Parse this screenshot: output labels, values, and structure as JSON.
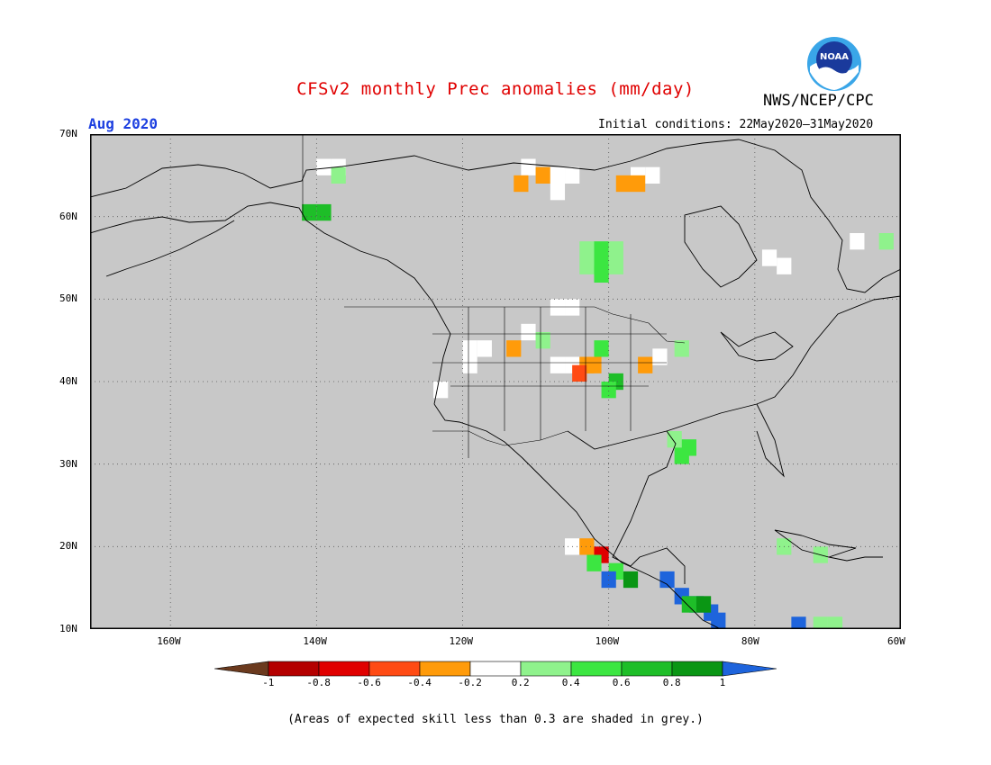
{
  "title": "CFSv2 monthly Prec anomalies (mm/day)",
  "agency": "NWS/NCEP/CPC",
  "logo_text": "NOAA",
  "valid_month": "Aug 2020",
  "initial_conditions": "Initial conditions: 22May2020–31May2020",
  "footnote": "(Areas of expected skill less than 0.3 are shaded in grey.)",
  "map": {
    "lat_labels": [
      "70N",
      "60N",
      "50N",
      "40N",
      "30N",
      "20N",
      "10N"
    ],
    "lon_labels": [
      "160W",
      "140W",
      "120W",
      "100W",
      "80W",
      "60W"
    ],
    "lat_range": [
      10,
      70
    ],
    "lon_range": [
      -171,
      -60
    ],
    "grid": "dotted",
    "background_color": "#c8c8c8"
  },
  "colorbar": {
    "labels": [
      "-1",
      "-0.8",
      "-0.6",
      "-0.4",
      "-0.2",
      "0.2",
      "0.4",
      "0.6",
      "0.8",
      "1"
    ],
    "colors": [
      "#6b3a1e",
      "#b40000",
      "#e00000",
      "#ff4b14",
      "#ff9b0a",
      "#ffffff",
      "#8ff28c",
      "#3ce641",
      "#1ebe28",
      "#0a9614",
      "#1e64dc"
    ]
  },
  "chart_data": {
    "type": "heatmap",
    "title": "CFSv2 monthly Prec anomalies (mm/day)",
    "units": "mm/day",
    "grid_step_deg": 2,
    "cells": [
      {
        "lon": -139,
        "lat": 66,
        "value": 0.1
      },
      {
        "lon": -137,
        "lat": 66,
        "value": 0.1
      },
      {
        "lon": -137,
        "lat": 65,
        "value": 0.3
      },
      {
        "lon": -139,
        "lat": 60.5,
        "value": 0.7
      },
      {
        "lon": -141,
        "lat": 60.5,
        "value": 0.7
      },
      {
        "lon": -111,
        "lat": 66,
        "value": 0.1
      },
      {
        "lon": -112,
        "lat": 64,
        "value": -0.3
      },
      {
        "lon": -109,
        "lat": 65,
        "value": -0.3
      },
      {
        "lon": -107,
        "lat": 65,
        "value": 0.1
      },
      {
        "lon": -105,
        "lat": 65,
        "value": 0.1
      },
      {
        "lon": -107,
        "lat": 63,
        "value": 0.1
      },
      {
        "lon": -96,
        "lat": 65,
        "value": 0.1
      },
      {
        "lon": -94,
        "lat": 65,
        "value": 0.1
      },
      {
        "lon": -98,
        "lat": 64,
        "value": -0.3
      },
      {
        "lon": -96,
        "lat": 64,
        "value": -0.3
      },
      {
        "lon": -103,
        "lat": 56,
        "value": 0.3
      },
      {
        "lon": -101,
        "lat": 56,
        "value": 0.5
      },
      {
        "lon": -99,
        "lat": 56,
        "value": 0.3
      },
      {
        "lon": -103,
        "lat": 54,
        "value": 0.3
      },
      {
        "lon": -101,
        "lat": 54,
        "value": 0.5
      },
      {
        "lon": -99,
        "lat": 54,
        "value": 0.3
      },
      {
        "lon": -101,
        "lat": 53,
        "value": 0.5
      },
      {
        "lon": -78,
        "lat": 55,
        "value": 0.1
      },
      {
        "lon": -76,
        "lat": 54,
        "value": 0.1
      },
      {
        "lon": -66,
        "lat": 57,
        "value": 0.1
      },
      {
        "lon": -62,
        "lat": 57,
        "value": 0.3
      },
      {
        "lon": -107,
        "lat": 49,
        "value": 0.1
      },
      {
        "lon": -105,
        "lat": 49,
        "value": 0.1
      },
      {
        "lon": -119,
        "lat": 44,
        "value": 0.1
      },
      {
        "lon": -117,
        "lat": 44,
        "value": 0.1
      },
      {
        "lon": -119,
        "lat": 42,
        "value": 0.1
      },
      {
        "lon": -113,
        "lat": 44,
        "value": -0.3
      },
      {
        "lon": -111,
        "lat": 46,
        "value": 0.1
      },
      {
        "lon": -109,
        "lat": 45,
        "value": 0.3
      },
      {
        "lon": -107,
        "lat": 42,
        "value": 0.1
      },
      {
        "lon": -105,
        "lat": 42,
        "value": 0.1
      },
      {
        "lon": -103,
        "lat": 42,
        "value": -0.3
      },
      {
        "lon": -104,
        "lat": 41,
        "value": -0.5
      },
      {
        "lon": -102,
        "lat": 42,
        "value": -0.3
      },
      {
        "lon": -101,
        "lat": 44,
        "value": 0.5
      },
      {
        "lon": -99,
        "lat": 40,
        "value": 0.7
      },
      {
        "lon": -100,
        "lat": 39,
        "value": 0.5
      },
      {
        "lon": -95,
        "lat": 42,
        "value": -0.3
      },
      {
        "lon": -93,
        "lat": 43,
        "value": 0.1
      },
      {
        "lon": -90,
        "lat": 44,
        "value": 0.3
      },
      {
        "lon": -123,
        "lat": 39,
        "value": 0.1
      },
      {
        "lon": -91,
        "lat": 33,
        "value": 0.3
      },
      {
        "lon": -89,
        "lat": 32,
        "value": 0.5
      },
      {
        "lon": -90,
        "lat": 31,
        "value": 0.5
      },
      {
        "lon": -105,
        "lat": 20,
        "value": 0.1
      },
      {
        "lon": -103,
        "lat": 20,
        "value": -0.3
      },
      {
        "lon": -101,
        "lat": 19,
        "value": -0.7
      },
      {
        "lon": -102,
        "lat": 18,
        "value": 0.5
      },
      {
        "lon": -99,
        "lat": 17,
        "value": 0.5
      },
      {
        "lon": -97,
        "lat": 16,
        "value": 0.9
      },
      {
        "lon": -100,
        "lat": 16,
        "value": 1.1
      },
      {
        "lon": -92,
        "lat": 16,
        "value": 1.1
      },
      {
        "lon": -90,
        "lat": 14,
        "value": 1.1
      },
      {
        "lon": -88,
        "lat": 13,
        "value": 1.1
      },
      {
        "lon": -86,
        "lat": 12,
        "value": 1.1
      },
      {
        "lon": -85,
        "lat": 11,
        "value": 1.1
      },
      {
        "lon": -89,
        "lat": 13,
        "value": 0.7
      },
      {
        "lon": -87,
        "lat": 13,
        "value": 0.9
      },
      {
        "lon": -76,
        "lat": 20,
        "value": 0.3
      },
      {
        "lon": -71,
        "lat": 19,
        "value": 0.3
      },
      {
        "lon": -74,
        "lat": 10.5,
        "value": 1.1
      },
      {
        "lon": -71,
        "lat": 10.5,
        "value": 0.3
      },
      {
        "lon": -69,
        "lat": 10.5,
        "value": 0.3
      }
    ]
  }
}
